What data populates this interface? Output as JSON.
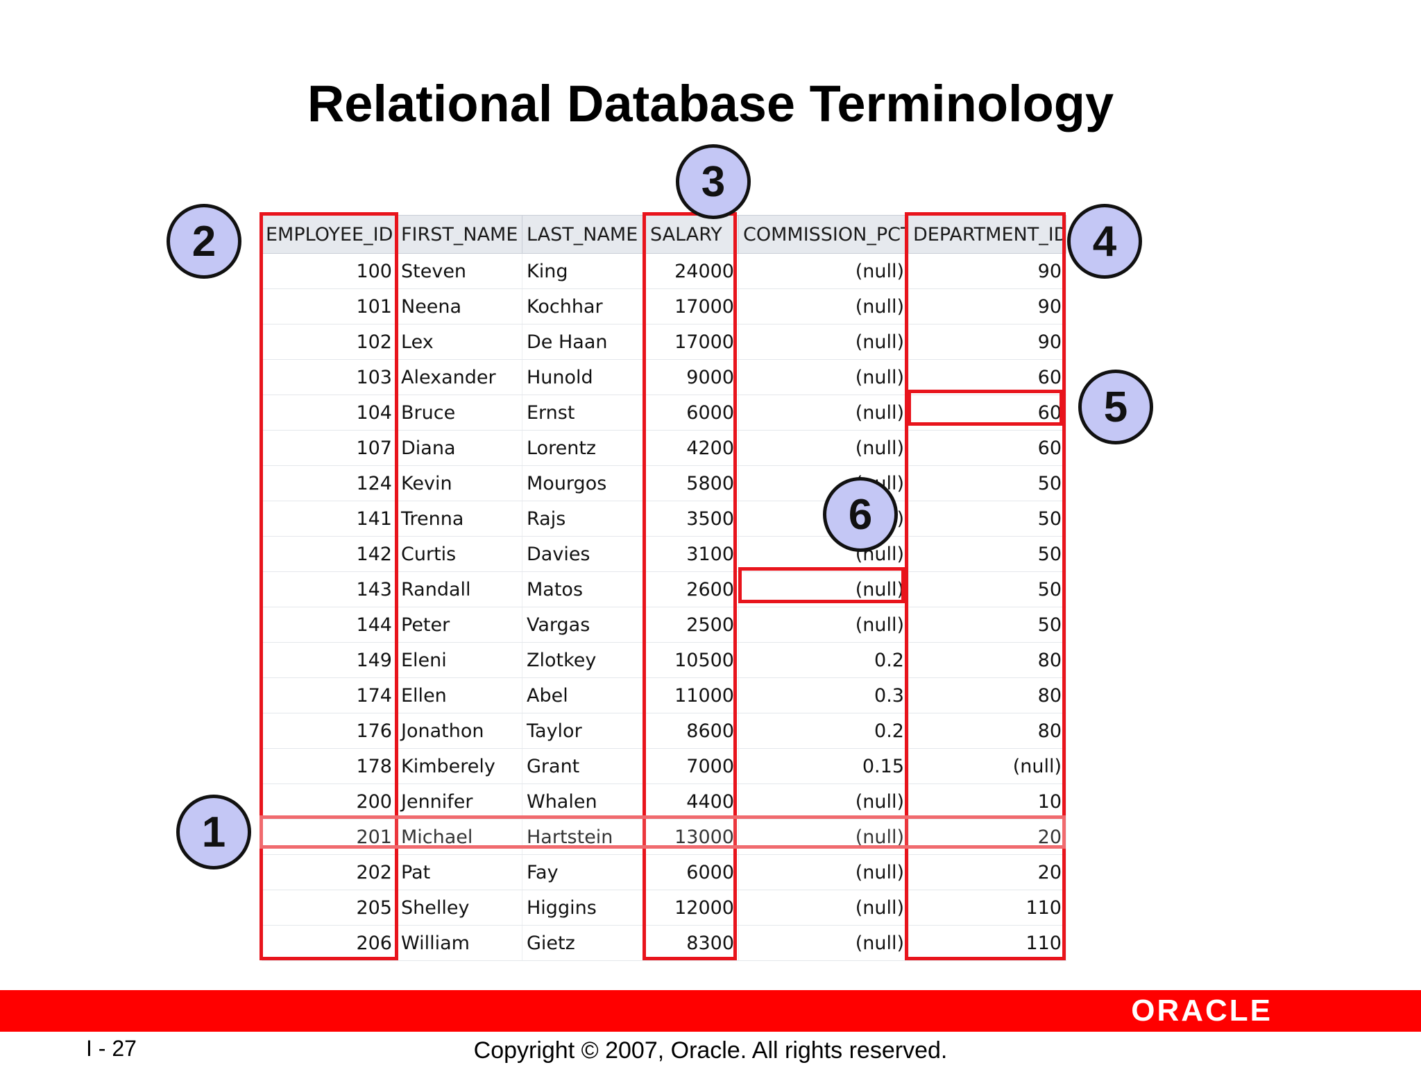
{
  "slide": {
    "title": "Relational Database Terminology",
    "page_number": "I - 27",
    "copyright": "Copyright © 2007, Oracle. All rights reserved.",
    "logo_text": "ORACLE",
    "brand_color": "#ff0000",
    "highlight_color": "#e8141c",
    "callout_color": "#c4c7f5"
  },
  "table": {
    "columns": [
      "EMPLOYEE_ID",
      "FIRST_NAME",
      "LAST_NAME",
      "SALARY",
      "COMMISSION_PCT",
      "DEPARTMENT_ID"
    ],
    "rows": [
      [
        "100",
        "Steven",
        "King",
        "24000",
        "(null)",
        "90"
      ],
      [
        "101",
        "Neena",
        "Kochhar",
        "17000",
        "(null)",
        "90"
      ],
      [
        "102",
        "Lex",
        "De Haan",
        "17000",
        "(null)",
        "90"
      ],
      [
        "103",
        "Alexander",
        "Hunold",
        "9000",
        "(null)",
        "60"
      ],
      [
        "104",
        "Bruce",
        "Ernst",
        "6000",
        "(null)",
        "60"
      ],
      [
        "107",
        "Diana",
        "Lorentz",
        "4200",
        "(null)",
        "60"
      ],
      [
        "124",
        "Kevin",
        "Mourgos",
        "5800",
        "(null)",
        "50"
      ],
      [
        "141",
        "Trenna",
        "Rajs",
        "3500",
        "(null)",
        "50"
      ],
      [
        "142",
        "Curtis",
        "Davies",
        "3100",
        "(null)",
        "50"
      ],
      [
        "143",
        "Randall",
        "Matos",
        "2600",
        "(null)",
        "50"
      ],
      [
        "144",
        "Peter",
        "Vargas",
        "2500",
        "(null)",
        "50"
      ],
      [
        "149",
        "Eleni",
        "Zlotkey",
        "10500",
        "0.2",
        "80"
      ],
      [
        "174",
        "Ellen",
        "Abel",
        "11000",
        "0.3",
        "80"
      ],
      [
        "176",
        "Jonathon",
        "Taylor",
        "8600",
        "0.2",
        "80"
      ],
      [
        "178",
        "Kimberely",
        "Grant",
        "7000",
        "0.15",
        "(null)"
      ],
      [
        "200",
        "Jennifer",
        "Whalen",
        "4400",
        "(null)",
        "10"
      ],
      [
        "201",
        "Michael",
        "Hartstein",
        "13000",
        "(null)",
        "20"
      ],
      [
        "202",
        "Pat",
        "Fay",
        "6000",
        "(null)",
        "20"
      ],
      [
        "205",
        "Shelley",
        "Higgins",
        "12000",
        "(null)",
        "110"
      ],
      [
        "206",
        "William",
        "Gietz",
        "8300",
        "(null)",
        "110"
      ]
    ]
  },
  "callouts": [
    "1",
    "2",
    "3",
    "4",
    "5",
    "6"
  ]
}
